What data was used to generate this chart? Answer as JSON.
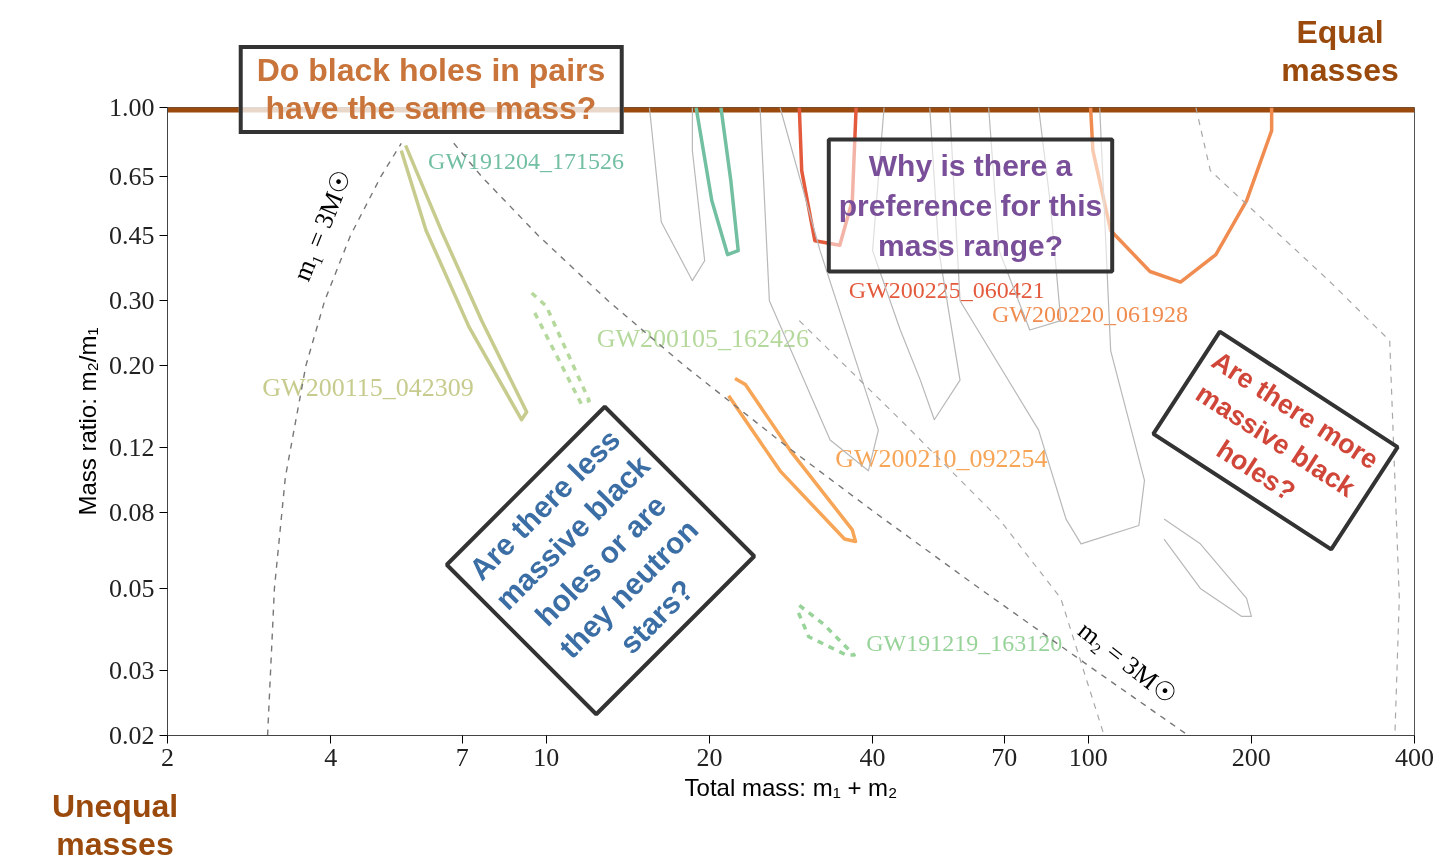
{
  "chart_data": {
    "type": "line",
    "xlabel": "Total mass: m₁ + m₂",
    "ylabel": "Mass ratio: m₂/m₁",
    "log": "xy",
    "grid": false,
    "xlim": [
      2,
      400
    ],
    "ylim": [
      0.02,
      1
    ],
    "xticks": [
      2,
      4,
      7,
      10,
      20,
      40,
      70,
      100,
      200,
      400
    ],
    "yticks": [
      {
        "value": 1,
        "label": "1.00"
      },
      0.65,
      0.45,
      {
        "value": 0.3,
        "label": "0.30"
      },
      {
        "value": 0.2,
        "label": "0.20"
      },
      0.12,
      0.08,
      0.05,
      0.03,
      0.02
    ],
    "ref_lines": [
      {
        "axis": "y",
        "value": 1,
        "label": "Equal\nmasses",
        "color": "#9a4a0c"
      }
    ],
    "annotations": [
      "Do black holes in pairs\nhave the same mass?",
      "Why is there a\npreference for this\nmass range?",
      "Are there less\nmassive black\nholes or are\nthey neutron\nstars?",
      "Are there more\nmassive black\nholes?",
      "Unequal\nmasses"
    ],
    "series": [
      {
        "name": "GW200115_042309",
        "color": "#c7cc8e",
        "line_style": "solid",
        "x": [
          5.5,
          6.4,
          7.6,
          9.2,
          9.0,
          7.2,
          6.0,
          5.4
        ],
        "values": [
          0.79,
          0.465,
          0.265,
          0.15,
          0.143,
          0.255,
          0.465,
          0.765
        ]
      },
      {
        "name": "GW200105_162426",
        "color": "#b5d99c",
        "line_style": "dashed",
        "x": [
          9.4,
          10,
          12,
          11.6,
          9.5
        ],
        "values": [
          0.315,
          0.29,
          0.161,
          0.158,
          0.28
        ]
      },
      {
        "name": "GW191219_163120",
        "color": "#98d39a",
        "line_style": "dashed",
        "x": [
          29.3,
          32.5,
          37,
          35.8,
          30.5,
          29
        ],
        "values": [
          0.045,
          0.04,
          0.033,
          0.033,
          0.037,
          0.044
        ]
      },
      {
        "name": "GW200210_092254",
        "color": "#f7a556",
        "line_style": "solid",
        "x": [
          22.3,
          23.3,
          28.2,
          36.7,
          37.2,
          35.5,
          27,
          21.7
        ],
        "values": [
          0.185,
          0.178,
          0.118,
          0.072,
          0.067,
          0.068,
          0.104,
          0.166
        ]
      },
      {
        "name": "GW191204_171526",
        "color": "#72bfa2",
        "line_style": "solid",
        "x": [
          18.9,
          20.2,
          21.6,
          22.6,
          21.9,
          21
        ],
        "values": [
          1,
          0.56,
          0.4,
          0.41,
          0.635,
          1
        ]
      },
      {
        "name": "GW200225_060421",
        "color": "#e45a3c",
        "line_style": "solid",
        "x": [
          29.3,
          29.6,
          31.3,
          34.8,
          36.7,
          37.3
        ],
        "values": [
          1,
          0.675,
          0.436,
          0.424,
          0.56,
          1
        ]
      },
      {
        "name": "GW200220_061928",
        "color": "#f08c50",
        "line_style": "solid",
        "x": [
          101,
          102,
          110,
          130,
          148,
          172,
          196,
          218,
          218
        ],
        "values": [
          1,
          0.765,
          0.465,
          0.36,
          0.337,
          0.4,
          0.56,
          0.866,
          1
        ]
      },
      {
        "name": "m₁ = 3M☉",
        "color": "#777777",
        "line_style": "dashed",
        "x": [
          3.06,
          3.15,
          3.3,
          3.6,
          3.9,
          4.35,
          4.95,
          5.4
        ],
        "values": [
          0.02,
          0.05,
          0.1,
          0.2,
          0.3,
          0.45,
          0.65,
          0.8
        ]
      },
      {
        "name": "m₂ = 3M☉",
        "color": "#777777",
        "line_style": "dashed",
        "x": [
          6.75,
          7.6,
          9.67,
          13,
          18,
          28,
          40.5,
          63,
          103,
          153
        ],
        "values": [
          0.8,
          0.65,
          0.45,
          0.3,
          0.2,
          0.12,
          0.08,
          0.05,
          0.03,
          0.02
        ]
      },
      {
        "color": "#b8b8b8",
        "line_style": "solid",
        "x": [
          138,
          161,
          196,
          200,
          192,
          161,
          138
        ],
        "values": [
          0.077,
          0.066,
          0.047,
          0.042,
          0.042,
          0.05,
          0.068
        ]
      },
      {
        "color": "#b8b8b8",
        "line_style": "solid",
        "x": [
          55.5,
          58,
          81,
          91,
          97,
          124,
          127,
          110,
          105
        ],
        "values": [
          1,
          0.3,
          0.134,
          0.077,
          0.066,
          0.074,
          0.098,
          0.22,
          1
        ]
      },
      {
        "color": "#b8b8b8",
        "line_style": "solid",
        "x": [
          42,
          40,
          45,
          49,
          52,
          58,
          53,
          51
        ],
        "values": [
          1,
          0.41,
          0.25,
          0.183,
          0.143,
          0.183,
          0.41,
          1
        ]
      },
      {
        "color": "#b8b8b8",
        "line_style": "solid",
        "x": [
          15.5,
          16.3,
          18.6,
          19.6,
          18.6,
          18.6
        ],
        "values": [
          1,
          0.49,
          0.34,
          0.385,
          0.765,
          1
        ]
      },
      {
        "color": "#b8b8b8",
        "line_style": "solid",
        "x": [
          24.8,
          25.8,
          33.4,
          39.3,
          41,
          32,
          27
        ],
        "values": [
          1,
          0.3,
          0.126,
          0.104,
          0.134,
          0.41,
          1
        ]
      },
      {
        "color": "#b8b8b8",
        "line_style": "solid",
        "x": [
          65.5,
          68.5,
          78,
          89,
          85,
          81
        ],
        "values": [
          1,
          0.41,
          0.25,
          0.265,
          0.56,
          1
        ]
      },
      {
        "color": "#a8a8a8",
        "line_style": "dashed",
        "x": [
          158,
          168,
          278,
          360,
          375,
          368
        ],
        "values": [
          1,
          0.675,
          0.34,
          0.234,
          0.047,
          0.02
        ]
      },
      {
        "color": "#a8a8a8",
        "line_style": "dashed",
        "x": [
          29.3,
          45,
          68.5,
          89,
          107
        ],
        "values": [
          0.265,
          0.143,
          0.077,
          0.047,
          0.02
        ]
      }
    ]
  }
}
